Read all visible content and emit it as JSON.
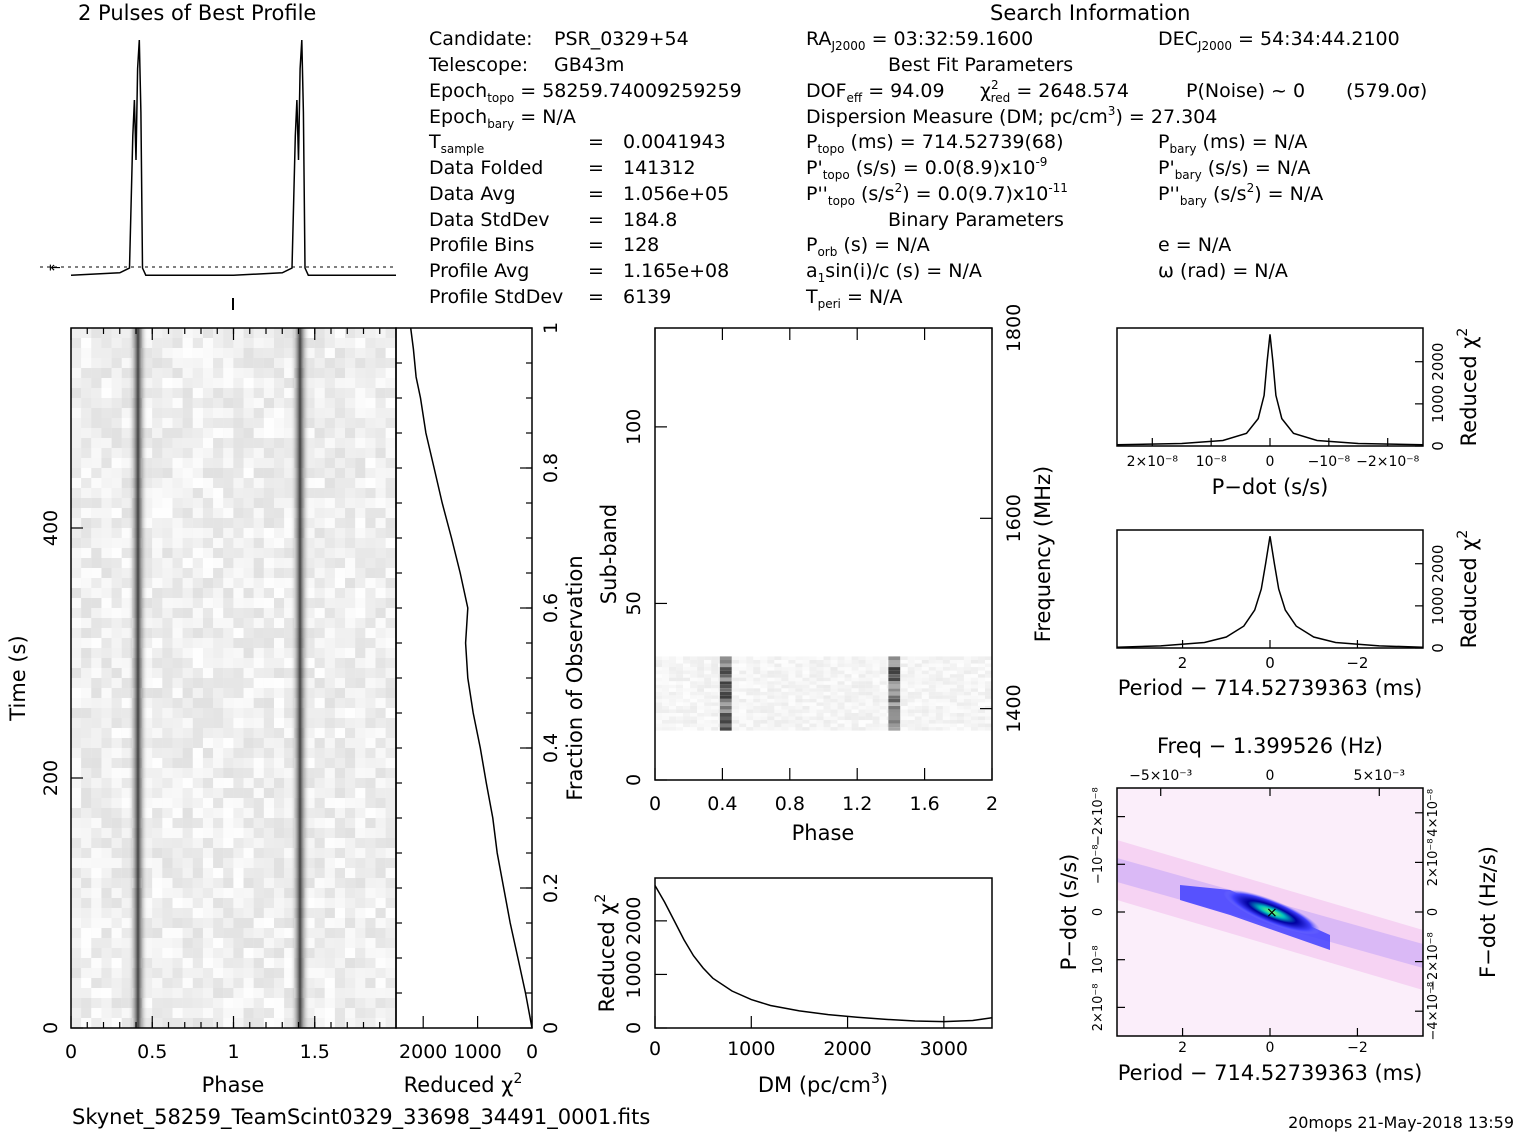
{
  "header": {
    "profile_title": "2 Pulses of Best Profile",
    "search_title": "Search Information",
    "best_fit_title": "Best Fit Parameters",
    "binary_title": "Binary Parameters"
  },
  "info": {
    "candidate_label": "Candidate:",
    "candidate": "PSR_0329+54",
    "telescope_label": "Telescope:",
    "telescope": "GB43m",
    "epoch_topo_pre": "Epoch",
    "epoch_topo_sub": "topo",
    "epoch_topo": "= 58259.74009259259",
    "epoch_bary_pre": "Epoch",
    "epoch_bary_sub": "bary",
    "epoch_bary": "= N/A",
    "tsample_pre": "T",
    "tsample_sub": "sample",
    "tsample": "0.0041943",
    "data_folded_label": "Data Folded",
    "data_folded": "141312",
    "data_avg_label": "Data Avg",
    "data_avg": "1.056e+05",
    "data_stddev_label": "Data StdDev",
    "data_stddev": "184.8",
    "profile_bins_label": "Profile Bins",
    "profile_bins": "128",
    "profile_avg_label": "Profile Avg",
    "profile_avg": "1.165e+08",
    "profile_stddev_label": "Profile StdDev",
    "profile_stddev": "6139",
    "eq": "=",
    "ra_pre": "RA",
    "ra_sub": "J2000",
    "ra": "= 03:32:59.1600",
    "dec_pre": "DEC",
    "dec_sub": "J2000",
    "dec": "= 54:34:44.2100",
    "dof_pre": "DOF",
    "dof_sub": "eff",
    "dof": "= 94.09",
    "chi_pre": "χ",
    "chi_sup": "2",
    "chi_sub": "red",
    "chi": "= 2648.574",
    "pnoise": "P(Noise) ~ 0",
    "sigma": "(579.0σ)",
    "dm_a": "Dispersion Measure (DM; pc/cm",
    "dm_sup": "3",
    "dm_b": ") = 27.304",
    "ptopo_pre": "P",
    "ptopo_sub": "topo",
    "ptopo": "(ms) =  714.52739(68)",
    "pbary_pre": "P",
    "pbary_sub": "bary",
    "pbary": "(ms) = N/A",
    "pdtopo_pre": "P'",
    "pdtopo_sub": "topo",
    "pdtopo": "(s/s) = 0.0(8.9)x10",
    "pdtopo_sup": "-9",
    "pdbary_pre": "P'",
    "pdbary_sub": "bary",
    "pdbary": "(s/s) = N/A",
    "pddtopo_pre": "P''",
    "pddtopo_sub": "topo",
    "pddtopo_a": "(s/s",
    "pddtopo_sup1": "2",
    "pddtopo_b": ") = 0.0(9.7)x10",
    "pddtopo_sup2": "-11",
    "pddbary_pre": "P''",
    "pddbary_sub": "bary",
    "pddbary_a": "(s/s",
    "pddbary_sup": "2",
    "pddbary_b": ") = N/A",
    "porb_pre": "P",
    "porb_sub": "orb",
    "porb": "(s) = N/A",
    "e": "e = N/A",
    "a1_a": "a",
    "a1_sub": "1",
    "a1_b": "sin(i)/c (s) = N/A",
    "omega": "ω (rad) = N/A",
    "tperi_pre": "T",
    "tperi_sub": "peri",
    "tperi": "= N/A"
  },
  "footer": {
    "filename": "Skynet_58259_TeamScint0329_33698_34491_0001.fits",
    "stamp": "20mops 21-May-2018 13:59"
  },
  "chart_data": [
    {
      "type": "line",
      "name": "profile",
      "title": "2 Pulses of Best Profile",
      "x": [
        0,
        0.3,
        0.36,
        0.38,
        0.39,
        0.4,
        0.41,
        0.42,
        0.43,
        0.44,
        0.46,
        0.52,
        0.7,
        1.0,
        1.3,
        1.36,
        1.38,
        1.39,
        1.4,
        1.41,
        1.42,
        1.43,
        1.44,
        1.46,
        1.52,
        1.7,
        2.0
      ],
      "values": [
        0.02,
        0.03,
        0.05,
        0.6,
        0.75,
        0.5,
        0.88,
        1.0,
        0.7,
        0.05,
        0.02,
        0.02,
        0.02,
        0.02,
        0.03,
        0.05,
        0.6,
        0.75,
        0.5,
        0.88,
        1.0,
        0.7,
        0.05,
        0.02,
        0.02,
        0.02,
        0.02
      ],
      "xlim": [
        0,
        2
      ],
      "ylim": [
        0,
        1
      ]
    },
    {
      "type": "heatmap",
      "name": "time-phase",
      "xlabel": "Phase",
      "ylabel": "Time (s)",
      "xlim": [
        0,
        2
      ],
      "ylim": [
        0,
        560
      ],
      "xticks": [
        "0",
        "0.5",
        "1",
        "1.5"
      ],
      "yticks": [
        "0",
        "200",
        "400"
      ],
      "pulse_phases": [
        0.42,
        1.42
      ]
    },
    {
      "type": "line",
      "name": "time-chi2",
      "xlabel": "Reduced χ²",
      "ylabel": "Fraction of Observation",
      "xticks": [
        "2000",
        "1000",
        "0"
      ],
      "yticks": [
        "0",
        "0.2",
        "0.4",
        "0.6",
        "0.8",
        "1"
      ],
      "x": [
        0,
        120,
        260,
        400,
        520,
        640,
        720,
        840,
        950,
        1080,
        1180,
        1220,
        1180,
        1320,
        1480,
        1650,
        1800,
        1950,
        2050,
        2130,
        2180,
        2230
      ],
      "y": [
        0.0,
        0.05,
        0.1,
        0.15,
        0.2,
        0.25,
        0.3,
        0.35,
        0.4,
        0.45,
        0.5,
        0.55,
        0.6,
        0.65,
        0.7,
        0.75,
        0.8,
        0.85,
        0.9,
        0.93,
        0.97,
        1.0
      ],
      "xlim": [
        2500,
        0
      ],
      "ylim": [
        0,
        1
      ]
    },
    {
      "type": "heatmap",
      "name": "subband-phase",
      "xlabel": "Phase",
      "ylabel": "Sub-band",
      "y2label": "Frequency (MHz)",
      "xlim": [
        0,
        2
      ],
      "ylim": [
        0,
        128
      ],
      "xticks": [
        "0",
        "0.4",
        "0.8",
        "1.2",
        "1.6",
        "2"
      ],
      "yticks": [
        "0",
        "50",
        "100"
      ],
      "y2ticks": [
        "1400",
        "1600",
        "1800"
      ],
      "active_subbands": [
        14,
        35
      ]
    },
    {
      "type": "line",
      "name": "dm-chi2",
      "xlabel": "DM (pc/cm³)",
      "ylabel": "Reduced χ²",
      "xticks": [
        "0",
        "1000",
        "2000",
        "3000"
      ],
      "yticks": [
        "0",
        "1000",
        "2000"
      ],
      "x": [
        0,
        100,
        200,
        300,
        400,
        500,
        600,
        800,
        1000,
        1200,
        1500,
        1800,
        2100,
        2400,
        2700,
        3000,
        3300,
        3500
      ],
      "values": [
        2660,
        2350,
        2000,
        1650,
        1350,
        1120,
        930,
        690,
        530,
        420,
        320,
        250,
        200,
        160,
        130,
        120,
        140,
        190
      ],
      "xlim": [
        0,
        3500
      ],
      "ylim": [
        0,
        2800
      ]
    },
    {
      "type": "line",
      "name": "pdot-chi2",
      "xlabel": "P−dot (s/s)",
      "ylabel": "Reduced χ²",
      "xticks": [
        "2×10⁻⁸",
        "10⁻⁸",
        "0",
        "−10⁻⁸",
        "−2×10⁻⁸"
      ],
      "yticks": [
        "0",
        "1000",
        "2000"
      ],
      "x": [
        2.6e-08,
        1.5e-08,
        8e-09,
        4e-09,
        2e-09,
        1e-09,
        5e-10,
        0,
        -5e-10,
        -1e-09,
        -2e-09,
        -4e-09,
        -8e-09,
        -1.5e-08,
        -2.6e-08
      ],
      "values": [
        30,
        60,
        130,
        300,
        650,
        1200,
        2000,
        2650,
        2000,
        1200,
        650,
        300,
        130,
        60,
        30
      ],
      "xlim": [
        2.6e-08,
        -2.6e-08
      ],
      "ylim": [
        0,
        2800
      ]
    },
    {
      "type": "line",
      "name": "period-chi2",
      "xlabel": "Period − 714.52739363 (ms)",
      "ylabel": "Reduced χ²",
      "xticks": [
        "2",
        "0",
        "−2"
      ],
      "yticks": [
        "0",
        "1000",
        "2000"
      ],
      "x": [
        3.5,
        2.5,
        1.5,
        1.0,
        0.6,
        0.35,
        0.2,
        0.1,
        0,
        -0.1,
        -0.2,
        -0.35,
        -0.6,
        -1.0,
        -1.5,
        -2.5,
        -3.5
      ],
      "values": [
        20,
        50,
        130,
        260,
        520,
        900,
        1400,
        2000,
        2650,
        2000,
        1400,
        900,
        520,
        260,
        130,
        50,
        20
      ],
      "xlim": [
        3.5,
        -3.5
      ],
      "ylim": [
        0,
        2800
      ]
    },
    {
      "type": "heatmap",
      "name": "period-pdot",
      "title": "Freq − 1.399526 (Hz)",
      "xlabel": "Period − 714.52739363 (ms)",
      "ylabel": "P−dot (s/s)",
      "y2label": "F−dot (Hz/s)",
      "xticks": [
        "2",
        "0",
        "−2"
      ],
      "x2ticks": [
        "−5×10⁻³",
        "0",
        "5×10⁻³"
      ],
      "yticks": [
        "2×10⁻⁸",
        "10⁻⁸",
        "0",
        "−10⁻⁸",
        "−2×10⁻⁸"
      ],
      "y2ticks": [
        "−4×10⁻⁸",
        "−2×10⁻⁸",
        "0",
        "2×10⁻⁸",
        "4×10⁻⁸"
      ],
      "colors": [
        "#ffffff",
        "#f4c8f0",
        "#4040ff",
        "#0000a0",
        "#00c0c0",
        "#80ff60"
      ]
    }
  ]
}
